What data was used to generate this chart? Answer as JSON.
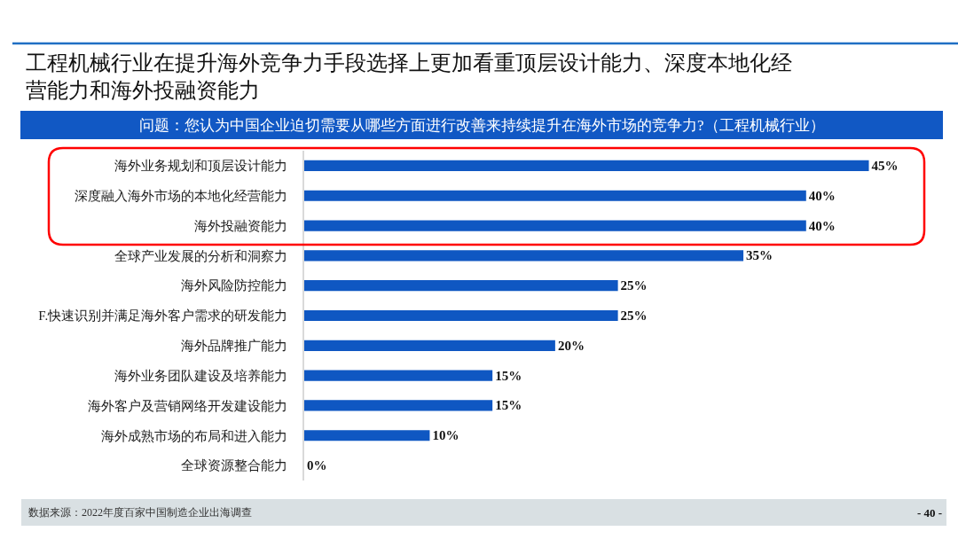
{
  "chart_data": {
    "type": "bar",
    "orientation": "horizontal",
    "title": "工程机械行业在提升海外竞争力手段选择上更加看重顶层设计能力、深度本地化经营能力和海外投融资能力",
    "subtitle": "问题：您认为中国企业迫切需要从哪些方面进行改善来持续提升在海外市场的竞争力?（工程机械行业）",
    "categories": [
      "海外业务规划和顶层设计能力",
      "深度融入海外市场的本地化经营能力",
      "海外投融资能力",
      "全球产业发展的分析和洞察力",
      "海外风险防控能力",
      "F.快速识别并满足海外客户需求的研发能力",
      "海外品牌推广能力",
      "海外业务团队建设及培养能力",
      "海外客户及营销网络开发建设能力",
      "海外成熟市场的布局和进入能力",
      "全球资源整合能力"
    ],
    "values": [
      45,
      40,
      40,
      35,
      25,
      25,
      20,
      15,
      15,
      10,
      0
    ],
    "value_labels": [
      "45%",
      "40%",
      "40%",
      "35%",
      "25%",
      "25%",
      "20%",
      "15%",
      "15%",
      "10%",
      "0%"
    ],
    "color": "#0f57c2",
    "tick_labels": "y",
    "annotations": [
      "数据来源：2022年度百家中国制造企业出海调查",
      "- 40 -"
    ]
  }
}
